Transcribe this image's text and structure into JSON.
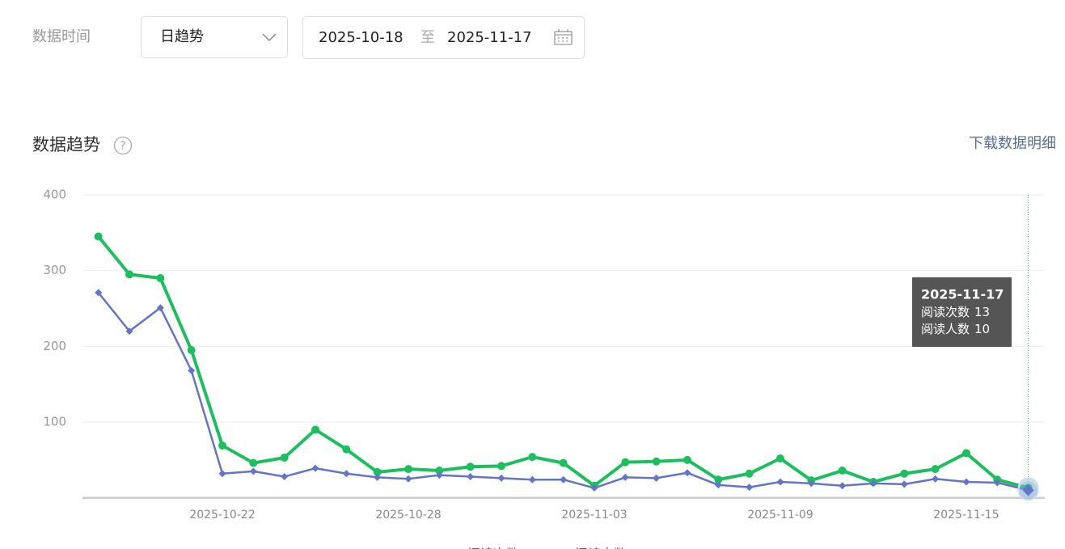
{
  "filters": {
    "label": "数据时间",
    "granularity": "日趋势",
    "start_date": "2025-10-18",
    "separator": "至",
    "end_date": "2025-11-17"
  },
  "section": {
    "title": "数据趋势",
    "help_icon": "?",
    "download_link": "下载数据明细"
  },
  "chart_data": {
    "type": "line",
    "categories": [
      null,
      null,
      null,
      null,
      "2025-10-22",
      null,
      null,
      null,
      null,
      null,
      "2025-10-28",
      null,
      null,
      null,
      null,
      null,
      "2025-11-03",
      null,
      null,
      null,
      null,
      null,
      "2025-11-09",
      null,
      null,
      null,
      null,
      null,
      "2025-11-15",
      null,
      null
    ],
    "series": [
      {
        "name": "阅读次数",
        "color": "#1bbf5e",
        "values": [
          345,
          295,
          290,
          195,
          69,
          46,
          53,
          90,
          64,
          34,
          38,
          36,
          41,
          42,
          54,
          46,
          16,
          47,
          48,
          50,
          24,
          32,
          52,
          23,
          36,
          21,
          32,
          38,
          59,
          24,
          13
        ]
      },
      {
        "name": "阅读人数",
        "color": "#6474c6",
        "values": [
          271,
          220,
          251,
          168,
          32,
          35,
          28,
          39,
          32,
          27,
          25,
          30,
          28,
          26,
          24,
          24,
          13,
          27,
          26,
          33,
          17,
          14,
          21,
          19,
          16,
          19,
          18,
          25,
          21,
          20,
          10
        ]
      }
    ],
    "ylim": [
      0,
      400
    ],
    "yticks": [
      100,
      200,
      300,
      400
    ],
    "grid": true,
    "tooltip": {
      "title": "2025-11-17",
      "index": 30
    }
  }
}
